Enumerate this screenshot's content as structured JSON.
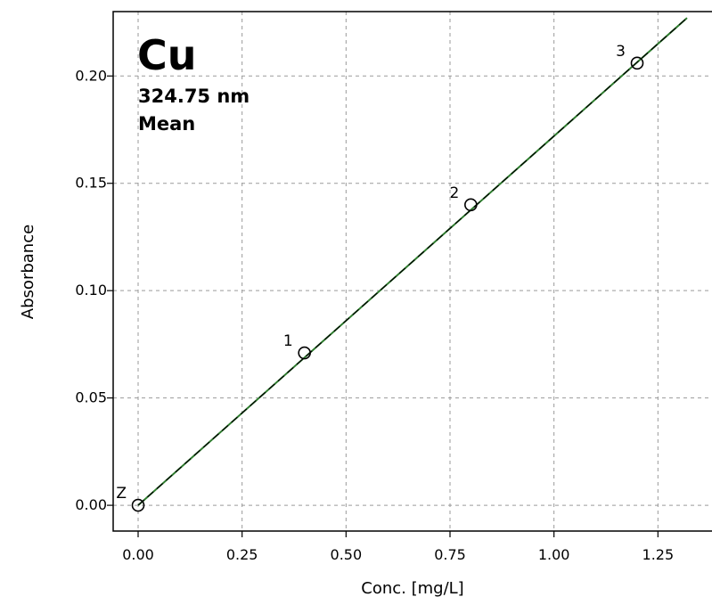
{
  "chart_data": {
    "type": "scatter",
    "xlabel": "Conc. [mg/L]",
    "ylabel": "Absorbance",
    "xlim": [
      -0.06,
      1.38
    ],
    "ylim": [
      -0.012,
      0.23
    ],
    "x_ticks": [
      "0.00",
      "0.25",
      "0.50",
      "0.75",
      "1.00",
      "1.25"
    ],
    "y_ticks": [
      "0.00",
      "0.05",
      "0.10",
      "0.15",
      "0.20"
    ],
    "grid": true,
    "annotation": {
      "element": "Cu",
      "wavelength": "324.75 nm",
      "mode": "Mean"
    },
    "series": [
      {
        "points": [
          {
            "label": "Z",
            "x": 0.0,
            "y": 0.0
          },
          {
            "label": "1",
            "x": 0.4,
            "y": 0.071
          },
          {
            "label": "2",
            "x": 0.8,
            "y": 0.14
          },
          {
            "label": "3",
            "x": 1.2,
            "y": 0.206
          }
        ]
      }
    ],
    "fit_line": {
      "slope": 0.172,
      "intercept": 0.0,
      "x_range": [
        0.0,
        1.32
      ]
    },
    "colors": {
      "fit_line": "#2e7d2e",
      "fit_dash": "#000000",
      "grid": "#9a9a9a",
      "axis": "#000000"
    }
  }
}
